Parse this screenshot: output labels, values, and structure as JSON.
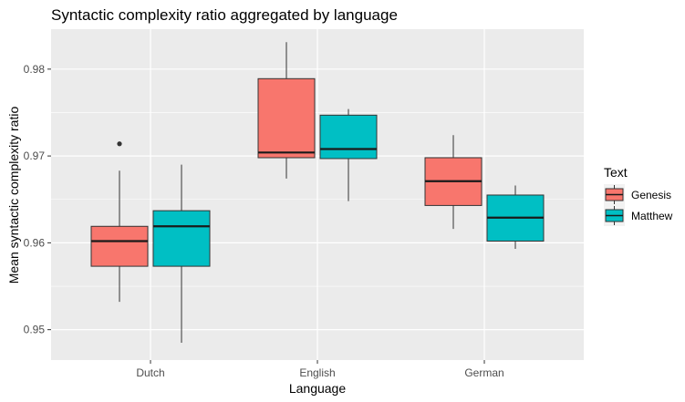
{
  "chart_data": {
    "type": "boxplot",
    "title": "Syntactic complexity ratio aggregated by language",
    "xlabel": "Language",
    "ylabel": "Mean syntactic complexity ratio",
    "categories": [
      "Dutch",
      "English",
      "German"
    ],
    "ylim": [
      0.9465,
      0.9846
    ],
    "yticks": [
      0.95,
      0.96,
      0.97,
      0.98
    ],
    "ytick_labels": [
      "0.95",
      "0.96",
      "0.97",
      "0.98"
    ],
    "grid": true,
    "legend": {
      "title": "Text",
      "position": "right"
    },
    "series": [
      {
        "name": "Genesis",
        "color": "#F8766D",
        "boxes": [
          {
            "category": "Dutch",
            "min": 0.9532,
            "q1": 0.9573,
            "median": 0.9602,
            "q3": 0.9619,
            "max": 0.9683,
            "outliers": [
              0.9714
            ]
          },
          {
            "category": "English",
            "min": 0.9674,
            "q1": 0.9698,
            "median": 0.9704,
            "q3": 0.9789,
            "max": 0.9831,
            "outliers": []
          },
          {
            "category": "German",
            "min": 0.9616,
            "q1": 0.9643,
            "median": 0.9671,
            "q3": 0.9698,
            "max": 0.9724,
            "outliers": []
          }
        ]
      },
      {
        "name": "Matthew",
        "color": "#00BFC4",
        "boxes": [
          {
            "category": "Dutch",
            "min": 0.9485,
            "q1": 0.9573,
            "median": 0.9619,
            "q3": 0.9637,
            "max": 0.969,
            "outliers": []
          },
          {
            "category": "English",
            "min": 0.9648,
            "q1": 0.9697,
            "median": 0.9708,
            "q3": 0.9747,
            "max": 0.9754,
            "outliers": []
          },
          {
            "category": "German",
            "min": 0.9593,
            "q1": 0.9602,
            "median": 0.9629,
            "q3": 0.9655,
            "max": 0.9666,
            "outliers": []
          }
        ]
      }
    ]
  }
}
